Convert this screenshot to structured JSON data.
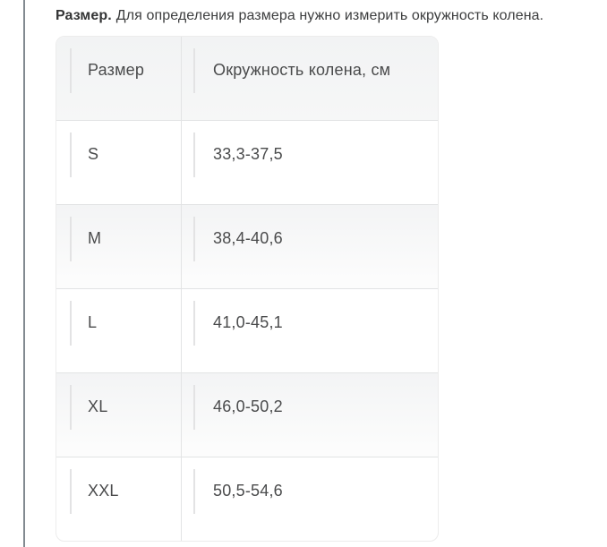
{
  "caption": {
    "term": "Размер.",
    "description": "Для определения размера нужно измерить окружность колена."
  },
  "table": {
    "headers": {
      "size": "Размер",
      "circumference": "Окружность колена, см"
    },
    "rows": [
      {
        "size": "S",
        "circumference": "33,3-37,5"
      },
      {
        "size": "M",
        "circumference": "38,4-40,6"
      },
      {
        "size": "L",
        "circumference": "41,0-45,1"
      },
      {
        "size": "XL",
        "circumference": "46,0-50,2"
      },
      {
        "size": "XXL",
        "circumference": "50,5-54,6"
      }
    ]
  }
}
